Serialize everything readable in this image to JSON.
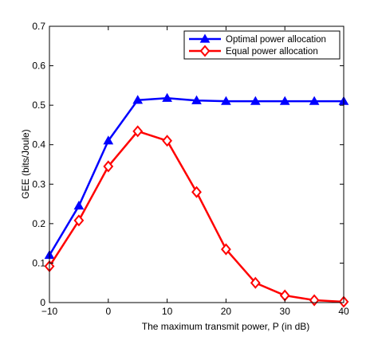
{
  "chart_data": {
    "type": "line",
    "xlabel": "The maximum transmit power, P (in dB)",
    "ylabel": "GEE (bits/Joule)",
    "xlim": [
      -10,
      40
    ],
    "ylim": [
      0,
      0.7
    ],
    "x_ticks": [
      "−10",
      "0",
      "10",
      "20",
      "30",
      "40"
    ],
    "x_tick_values": [
      -10,
      0,
      10,
      20,
      30,
      40
    ],
    "y_ticks": [
      "0",
      "0.1",
      "0.2",
      "0.3",
      "0.4",
      "0.5",
      "0.6",
      "0.7"
    ],
    "y_tick_values": [
      0,
      0.1,
      0.2,
      0.3,
      0.4,
      0.5,
      0.6,
      0.7
    ],
    "grid": false,
    "legend_position": "top-right",
    "x": [
      -10,
      -5,
      0,
      5,
      10,
      15,
      20,
      25,
      30,
      35,
      40
    ],
    "series": [
      {
        "name": "Optimal power allocation",
        "color": "#0000ff",
        "marker": "triangle",
        "values": [
          0.12,
          0.245,
          0.41,
          0.513,
          0.518,
          0.512,
          0.51,
          0.51,
          0.51,
          0.51,
          0.51
        ]
      },
      {
        "name": "Equal power allocation",
        "color": "#ff0000",
        "marker": "diamond",
        "values": [
          0.092,
          0.208,
          0.345,
          0.434,
          0.41,
          0.28,
          0.135,
          0.05,
          0.018,
          0.006,
          0.002
        ]
      }
    ]
  }
}
